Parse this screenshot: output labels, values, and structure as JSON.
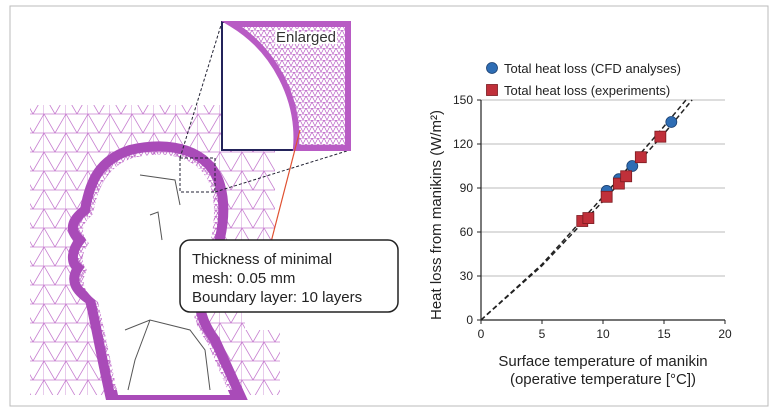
{
  "figure": {
    "inset_label": "Enlarged",
    "callout": [
      "Thickness of minimal",
      "mesh: 0.05 mm",
      "Boundary layer: 10 layers"
    ]
  },
  "chart_data": {
    "type": "scatter",
    "xlabel": [
      "Surface temperature of manikin",
      "(operative temperature [°C])"
    ],
    "ylabel": "Heat loss from manikins (W/m²)",
    "xlim": [
      0,
      20
    ],
    "ylim": [
      0,
      150
    ],
    "xticks": [
      0,
      5,
      10,
      15,
      20
    ],
    "yticks": [
      0,
      30,
      60,
      90,
      120,
      150
    ],
    "grid": true,
    "legend": "top-left",
    "series": [
      {
        "name": "Total heat loss (CFD analyses)",
        "color": "#2e6db4",
        "marker": "circle",
        "x": [
          10.3,
          11.3,
          12.4,
          15.6
        ],
        "values": [
          88,
          96,
          105,
          135
        ]
      },
      {
        "name": "Total heat loss (experiments)",
        "color": "#c0303a",
        "marker": "square",
        "x": [
          8.3,
          8.8,
          10.3,
          11.3,
          11.9,
          13.1,
          14.7
        ],
        "values": [
          67.5,
          69.5,
          84,
          93,
          98,
          111,
          125
        ]
      }
    ],
    "fit_lines": [
      {
        "color": "#222222",
        "x": [
          0,
          5,
          10,
          15,
          16.8
        ],
        "values": [
          0,
          38,
          84,
          132,
          150
        ]
      },
      {
        "color": "#222222",
        "x": [
          0,
          5,
          10,
          15,
          17.3
        ],
        "values": [
          0,
          37,
          81,
          127,
          150
        ]
      }
    ]
  }
}
